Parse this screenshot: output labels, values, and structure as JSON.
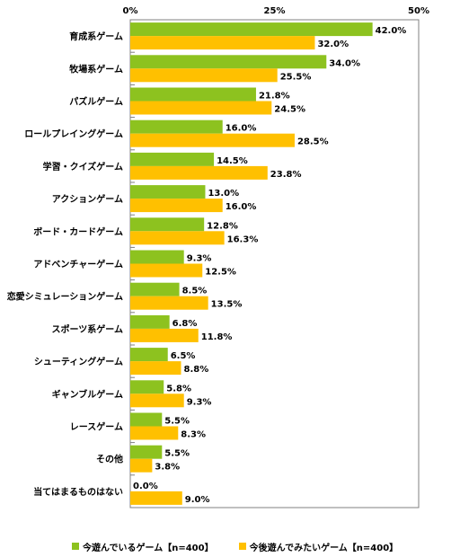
{
  "chart_data": {
    "type": "bar",
    "orientation": "horizontal",
    "categories": [
      "育成系ゲーム",
      "牧場系ゲーム",
      "パズルゲーム",
      "ロールプレイングゲーム",
      "学習・クイズゲーム",
      "アクションゲーム",
      "ボード・カードゲーム",
      "アドベンチャーゲーム",
      "恋愛シミュレーションゲーム",
      "スポーツ系ゲーム",
      "シューティングゲーム",
      "ギャンブルゲーム",
      "レースゲーム",
      "その他",
      "当てはまるものはない"
    ],
    "series": [
      {
        "name": "今遊んでいるゲーム【n=400】",
        "color": "#8dc21f",
        "values": [
          42.0,
          34.0,
          21.8,
          16.0,
          14.5,
          13.0,
          12.8,
          9.3,
          8.5,
          6.8,
          6.5,
          5.8,
          5.5,
          5.5,
          0.0
        ]
      },
      {
        "name": "今後遊んでみたいゲーム【n=400】",
        "color": "#ffc000",
        "values": [
          32.0,
          25.5,
          24.5,
          28.5,
          23.8,
          16.0,
          16.3,
          12.5,
          13.5,
          11.8,
          8.8,
          9.3,
          8.3,
          3.8,
          9.0
        ]
      }
    ],
    "xlim": [
      0,
      50
    ],
    "ticks": [
      "0%",
      "25%",
      "50%"
    ],
    "tick_values": [
      0,
      25,
      50
    ],
    "value_suffix": "%",
    "grid": false,
    "legend_position": "bottom"
  }
}
